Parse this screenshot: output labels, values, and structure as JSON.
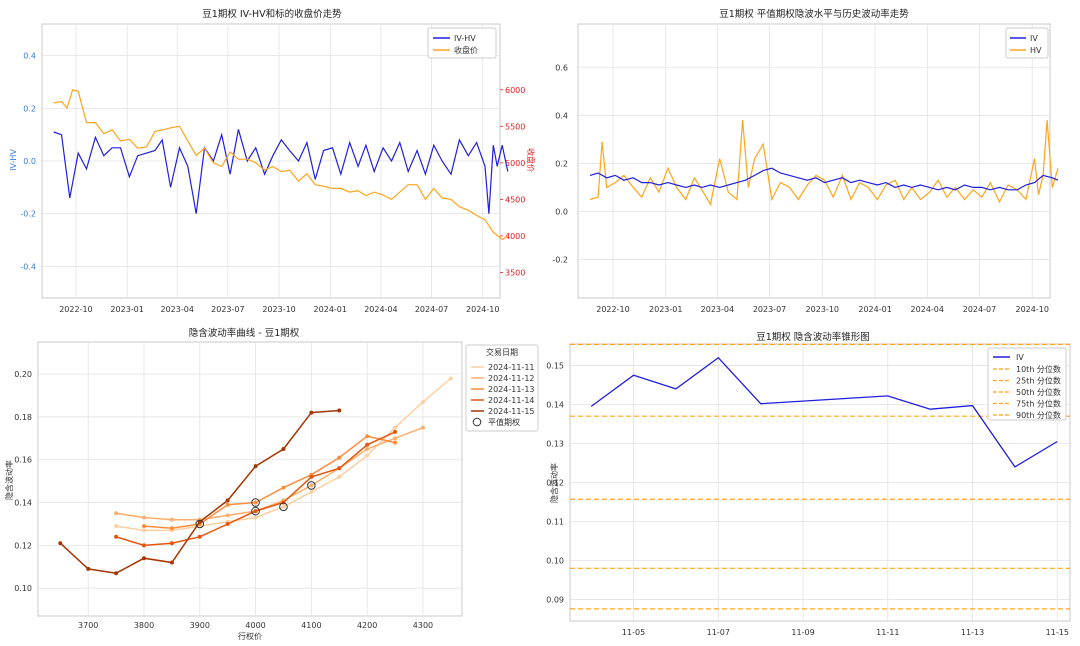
{
  "chart_data": [
    {
      "type": "line",
      "title": "豆1期权 IV-HV和标的收盘价走势",
      "ylabel": "IV-HV",
      "y2label": "收盘价",
      "ylim": [
        -0.52,
        0.52
      ],
      "y2lim": [
        3150,
        6900
      ],
      "yticks": [
        "0.4",
        "0.2",
        "0.0",
        "-0.2",
        "-0.4"
      ],
      "y2ticks": [
        "6000",
        "5500",
        "5000",
        "4500",
        "4000",
        "3500"
      ],
      "xticks": [
        "2022-10",
        "2023-01",
        "2023-04",
        "2023-07",
        "2023-10",
        "2024-01",
        "2024-04",
        "2024-07",
        "2024-10"
      ],
      "x_start": "2022-08",
      "x_end": "2024-11",
      "legend_position": "top-right",
      "series": [
        {
          "name": "IV-HV",
          "axis": "left",
          "color": "#1f1fe0",
          "x": [
            "2022-08-22",
            "2022-09-05",
            "2022-09-20",
            "2022-10-05",
            "2022-10-20",
            "2022-11-05",
            "2022-11-20",
            "2022-12-05",
            "2022-12-20",
            "2023-01-05",
            "2023-01-20",
            "2023-02-05",
            "2023-02-20",
            "2023-03-05",
            "2023-03-20",
            "2023-04-05",
            "2023-04-20",
            "2023-05-05",
            "2023-05-20",
            "2023-06-05",
            "2023-06-20",
            "2023-07-05",
            "2023-07-20",
            "2023-08-05",
            "2023-08-20",
            "2023-09-05",
            "2023-09-20",
            "2023-10-05",
            "2023-10-20",
            "2023-11-05",
            "2023-11-20",
            "2023-12-05",
            "2023-12-20",
            "2024-01-05",
            "2024-01-20",
            "2024-02-05",
            "2024-02-20",
            "2024-03-05",
            "2024-03-20",
            "2024-04-05",
            "2024-04-20",
            "2024-05-05",
            "2024-05-20",
            "2024-06-05",
            "2024-06-20",
            "2024-07-05",
            "2024-07-20",
            "2024-08-05",
            "2024-08-20",
            "2024-09-05",
            "2024-09-20",
            "2024-10-05",
            "2024-10-12",
            "2024-10-20",
            "2024-10-27",
            "2024-11-05",
            "2024-11-15"
          ],
          "values": [
            0.11,
            0.1,
            -0.14,
            0.03,
            -0.03,
            0.09,
            0.02,
            0.05,
            0.05,
            -0.06,
            0.02,
            0.03,
            0.04,
            0.08,
            -0.1,
            0.05,
            -0.02,
            -0.2,
            0.05,
            0.0,
            0.1,
            -0.05,
            0.12,
            0.0,
            0.05,
            -0.05,
            0.02,
            0.08,
            0.04,
            0.0,
            0.07,
            -0.07,
            0.04,
            0.05,
            -0.05,
            0.07,
            -0.02,
            0.06,
            -0.04,
            0.05,
            0.0,
            0.07,
            -0.04,
            0.04,
            -0.05,
            0.06,
            0.0,
            -0.05,
            0.08,
            0.02,
            0.07,
            -0.02,
            -0.2,
            0.06,
            -0.02,
            0.06,
            -0.04
          ]
        },
        {
          "name": "收盘价",
          "axis": "right",
          "color": "#ffa41b",
          "x": [
            "2022-08-22",
            "2022-09-05",
            "2022-09-15",
            "2022-09-25",
            "2022-10-05",
            "2022-10-20",
            "2022-11-05",
            "2022-11-20",
            "2022-12-05",
            "2022-12-20",
            "2023-01-05",
            "2023-01-20",
            "2023-02-05",
            "2023-02-20",
            "2023-03-05",
            "2023-03-20",
            "2023-04-05",
            "2023-04-20",
            "2023-05-05",
            "2023-05-20",
            "2023-06-05",
            "2023-06-20",
            "2023-07-05",
            "2023-07-20",
            "2023-08-05",
            "2023-08-20",
            "2023-09-05",
            "2023-09-20",
            "2023-10-05",
            "2023-10-20",
            "2023-11-05",
            "2023-11-20",
            "2023-12-05",
            "2023-12-20",
            "2024-01-05",
            "2024-01-20",
            "2024-02-05",
            "2024-02-20",
            "2024-03-05",
            "2024-03-20",
            "2024-04-05",
            "2024-04-20",
            "2024-05-05",
            "2024-05-20",
            "2024-06-05",
            "2024-06-20",
            "2024-07-05",
            "2024-07-20",
            "2024-08-05",
            "2024-08-20",
            "2024-09-05",
            "2024-09-20",
            "2024-10-05",
            "2024-10-20",
            "2024-11-05",
            "2024-11-15"
          ],
          "values": [
            5820,
            5840,
            5750,
            6000,
            5980,
            5550,
            5550,
            5400,
            5450,
            5300,
            5320,
            5200,
            5220,
            5430,
            5450,
            5480,
            5500,
            5300,
            5100,
            5200,
            5000,
            4950,
            5150,
            5050,
            5050,
            5000,
            4900,
            4950,
            4880,
            4900,
            4750,
            4850,
            4700,
            4680,
            4650,
            4650,
            4600,
            4620,
            4550,
            4600,
            4560,
            4500,
            4600,
            4700,
            4700,
            4500,
            4650,
            4520,
            4500,
            4400,
            4350,
            4280,
            4220,
            4050,
            3950,
            4000
          ]
        }
      ]
    },
    {
      "type": "line",
      "title": "豆1期权 平值期权隐波水平与历史波动率走势",
      "ylim": [
        -0.36,
        0.78
      ],
      "yticks": [
        "0.6",
        "0.4",
        "0.2",
        "0.0",
        "-0.2"
      ],
      "xticks": [
        "2022-10",
        "2023-01",
        "2023-04",
        "2023-07",
        "2023-10",
        "2024-01",
        "2024-04",
        "2024-07",
        "2024-10"
      ],
      "x_start": "2022-08",
      "x_end": "2024-11",
      "legend_position": "top-right",
      "series": [
        {
          "name": "IV",
          "color": "#1f1fe0",
          "x": [
            "2022-08-22",
            "2022-09-05",
            "2022-09-20",
            "2022-10-05",
            "2022-10-20",
            "2022-11-05",
            "2022-11-20",
            "2022-12-05",
            "2022-12-20",
            "2023-01-05",
            "2023-01-20",
            "2023-02-05",
            "2023-02-20",
            "2023-03-05",
            "2023-03-20",
            "2023-04-05",
            "2023-04-20",
            "2023-05-05",
            "2023-05-20",
            "2023-06-05",
            "2023-06-20",
            "2023-07-05",
            "2023-07-20",
            "2023-08-05",
            "2023-08-20",
            "2023-09-05",
            "2023-09-20",
            "2023-10-05",
            "2023-10-20",
            "2023-11-05",
            "2023-11-20",
            "2023-12-05",
            "2023-12-20",
            "2024-01-05",
            "2024-01-20",
            "2024-02-05",
            "2024-02-20",
            "2024-03-05",
            "2024-03-20",
            "2024-04-05",
            "2024-04-20",
            "2024-05-05",
            "2024-05-20",
            "2024-06-05",
            "2024-06-20",
            "2024-07-05",
            "2024-07-20",
            "2024-08-05",
            "2024-08-20",
            "2024-09-05",
            "2024-09-20",
            "2024-10-05",
            "2024-10-20",
            "2024-11-05",
            "2024-11-15"
          ],
          "values": [
            0.15,
            0.16,
            0.14,
            0.15,
            0.13,
            0.14,
            0.12,
            0.12,
            0.11,
            0.12,
            0.11,
            0.1,
            0.11,
            0.1,
            0.11,
            0.1,
            0.11,
            0.12,
            0.13,
            0.15,
            0.17,
            0.18,
            0.16,
            0.15,
            0.14,
            0.13,
            0.14,
            0.12,
            0.13,
            0.14,
            0.12,
            0.13,
            0.12,
            0.11,
            0.12,
            0.1,
            0.11,
            0.1,
            0.11,
            0.1,
            0.09,
            0.1,
            0.09,
            0.11,
            0.1,
            0.1,
            0.09,
            0.1,
            0.09,
            0.09,
            0.11,
            0.12,
            0.15,
            0.14,
            0.13
          ]
        },
        {
          "name": "HV",
          "color": "#ffa41b",
          "x": [
            "2022-08-22",
            "2022-09-05",
            "2022-09-12",
            "2022-09-20",
            "2022-10-05",
            "2022-10-20",
            "2022-11-05",
            "2022-11-20",
            "2022-12-05",
            "2022-12-20",
            "2023-01-05",
            "2023-01-20",
            "2023-02-05",
            "2023-02-20",
            "2023-03-05",
            "2023-03-20",
            "2023-04-05",
            "2023-04-20",
            "2023-05-05",
            "2023-05-15",
            "2023-05-25",
            "2023-06-05",
            "2023-06-20",
            "2023-07-05",
            "2023-07-20",
            "2023-08-05",
            "2023-08-20",
            "2023-09-05",
            "2023-09-20",
            "2023-10-05",
            "2023-10-20",
            "2023-11-05",
            "2023-11-20",
            "2023-12-05",
            "2023-12-20",
            "2024-01-05",
            "2024-01-20",
            "2024-02-05",
            "2024-02-20",
            "2024-03-05",
            "2024-03-20",
            "2024-04-05",
            "2024-04-20",
            "2024-05-05",
            "2024-05-20",
            "2024-06-05",
            "2024-06-20",
            "2024-07-05",
            "2024-07-20",
            "2024-08-05",
            "2024-08-20",
            "2024-09-05",
            "2024-09-20",
            "2024-10-05",
            "2024-10-12",
            "2024-10-20",
            "2024-10-27",
            "2024-11-05",
            "2024-11-15"
          ],
          "values": [
            0.05,
            0.06,
            0.29,
            0.1,
            0.12,
            0.15,
            0.1,
            0.06,
            0.14,
            0.08,
            0.18,
            0.1,
            0.05,
            0.14,
            0.09,
            0.03,
            0.22,
            0.08,
            0.05,
            0.38,
            0.1,
            0.22,
            0.28,
            0.05,
            0.12,
            0.1,
            0.05,
            0.11,
            0.15,
            0.13,
            0.06,
            0.15,
            0.05,
            0.12,
            0.1,
            0.05,
            0.11,
            0.13,
            0.05,
            0.1,
            0.05,
            0.08,
            0.13,
            0.06,
            0.1,
            0.05,
            0.09,
            0.06,
            0.12,
            0.04,
            0.11,
            0.09,
            0.05,
            0.22,
            0.07,
            0.15,
            0.38,
            0.1,
            0.18
          ]
        }
      ]
    },
    {
      "type": "line",
      "title": "隐含波动率曲线 - 豆1期权",
      "xlabel": "行权价",
      "ylabel": "隐含波动率",
      "xlim": [
        3610,
        4370
      ],
      "ylim": [
        0.087,
        0.215
      ],
      "xticks": [
        "3700",
        "3800",
        "3900",
        "4000",
        "4100",
        "4200",
        "4300"
      ],
      "yticks": [
        "0.20",
        "0.18",
        "0.16",
        "0.14",
        "0.12",
        "0.10"
      ],
      "legend_title": "交易日期",
      "legend_position": "outside-right",
      "atm_label": "平值期权",
      "series": [
        {
          "name": "2024-11-11",
          "color": "#fdd0a2",
          "x": [
            3750,
            3800,
            3850,
            3900,
            3950,
            4000,
            4050,
            4100,
            4150,
            4200,
            4250,
            4300,
            4350
          ],
          "values": [
            0.129,
            0.127,
            0.127,
            0.129,
            0.131,
            0.133,
            0.138,
            0.145,
            0.152,
            0.162,
            0.175,
            0.187,
            0.198
          ]
        },
        {
          "name": "2024-11-12",
          "color": "#fdae6b",
          "x": [
            3750,
            3800,
            3850,
            3900,
            3950,
            4000,
            4050,
            4100,
            4150,
            4200,
            4250,
            4300
          ],
          "values": [
            0.135,
            0.133,
            0.132,
            0.132,
            0.134,
            0.136,
            0.141,
            0.148,
            0.156,
            0.165,
            0.17,
            0.175
          ]
        },
        {
          "name": "2024-11-13",
          "color": "#fd8d3c",
          "x": [
            3800,
            3850,
            3900,
            3950,
            4000,
            4050,
            4100,
            4150,
            4200,
            4250
          ],
          "values": [
            0.129,
            0.128,
            0.13,
            0.139,
            0.14,
            0.147,
            0.153,
            0.161,
            0.171,
            0.168
          ]
        },
        {
          "name": "2024-11-14",
          "color": "#e6550d",
          "x": [
            3750,
            3800,
            3850,
            3900,
            3950,
            4000,
            4050,
            4100,
            4150,
            4200,
            4250
          ],
          "values": [
            0.124,
            0.12,
            0.121,
            0.124,
            0.13,
            0.136,
            0.14,
            0.152,
            0.156,
            0.167,
            0.173
          ]
        },
        {
          "name": "2024-11-15",
          "color": "#a63603",
          "x": [
            3650,
            3700,
            3750,
            3800,
            3850,
            3900,
            3950,
            4000,
            4050,
            4100,
            4150
          ],
          "values": [
            0.121,
            0.109,
            0.107,
            0.114,
            0.112,
            0.131,
            0.141,
            0.157,
            0.165,
            0.182,
            0.183
          ]
        }
      ],
      "atm_points": [
        {
          "x": 3900,
          "y": 0.13
        },
        {
          "x": 4000,
          "y": 0.14
        },
        {
          "x": 4000,
          "y": 0.136
        },
        {
          "x": 4050,
          "y": 0.138
        },
        {
          "x": 4100,
          "y": 0.148
        }
      ]
    },
    {
      "type": "line",
      "title": "豆1期权 隐含波动率锥形图",
      "ylabel": "隐含波动率",
      "ylim": [
        0.0845,
        0.1555
      ],
      "yticks": [
        "0.15",
        "0.14",
        "0.13",
        "0.12",
        "0.11",
        "0.10",
        "0.09"
      ],
      "xticks": [
        "11-05",
        "11-07",
        "11-09",
        "11-11",
        "11-13",
        "11-15"
      ],
      "x_start": "11-03.5",
      "x_end": "11-15.3",
      "legend_position": "top-right",
      "series": [
        {
          "name": "IV",
          "color": "#1f1fe0",
          "x": [
            "11-04",
            "11-05",
            "11-06",
            "11-07",
            "11-08",
            "11-11",
            "11-12",
            "11-13",
            "11-14",
            "11-15"
          ],
          "values": [
            0.1395,
            0.1475,
            0.144,
            0.152,
            0.1402,
            0.1422,
            0.1388,
            0.1397,
            0.124,
            0.1305
          ]
        }
      ],
      "percentiles": [
        {
          "name": "10th 分位数",
          "value": 0.0876
        },
        {
          "name": "25th 分位数",
          "value": 0.098
        },
        {
          "name": "50th 分位数",
          "value": 0.1157
        },
        {
          "name": "75th 分位数",
          "value": 0.137
        },
        {
          "name": "90th 分位数",
          "value": 0.1554
        }
      ],
      "percentile_color": "#ffa41b"
    }
  ]
}
